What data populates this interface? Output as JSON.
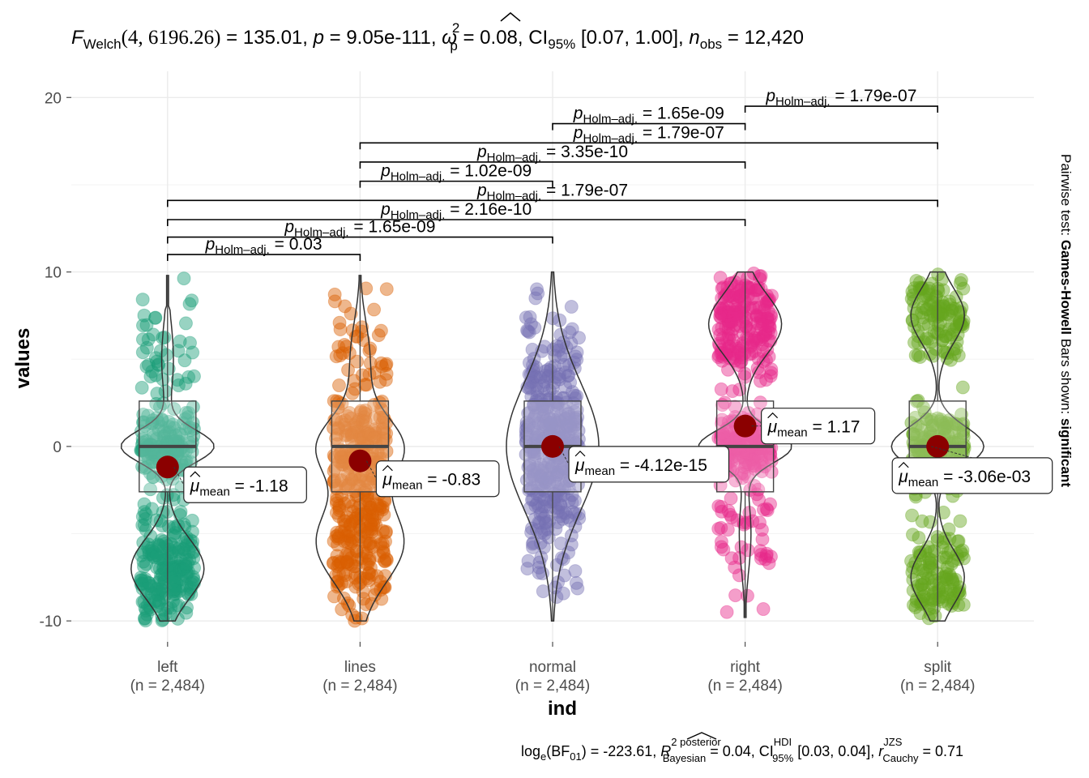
{
  "title": {
    "text": "F Welch(4, 6196.26) = 135.01, p = 9.05e-111, ω̂²p = 0.08, CI95% [0.07, 1.00], n obs = 12,420",
    "F": "F",
    "F_sub": "Welch",
    "df": "(4, 6196.26)",
    "eq1": " = 135.01, ",
    "p": "p",
    "eq2": " = 9.05e-111, ",
    "omega": "ω",
    "omega_sup": "2",
    "omega_sub": "p",
    "eq3": " = 0.08, CI",
    "ci_sub": "95%",
    "eq4": " [0.07, 1.00], ",
    "n": "n",
    "n_sub": "obs",
    "eq5": " = 12,420"
  },
  "caption": {
    "text": "loge(BF01) = -223.61, R̂² posterior Bayesian = 0.04, CI HDI 95% [0.03, 0.04], r JZS Cauchy = 0.71",
    "log": "log",
    "log_sub": "e",
    "bf": "(BF",
    "bf_sub": "01",
    "eq1": ") = -223.61, ",
    "r2": "R",
    "r2_sup": "2 posterior",
    "r2_sub": "Bayesian",
    "eq2": " = 0.04, CI",
    "ci_sup": "HDI",
    "ci_sub": "95%",
    "eq3": " [0.03, 0.04], ",
    "r": "r",
    "r_sup": "JZS",
    "r_sub": "Cauchy",
    "eq4": " = 0.71"
  },
  "side_label": {
    "prefix": "Pairwise test: ",
    "test": "Games-Howell",
    "middle": " Bars shown: ",
    "shown": "significant"
  },
  "chart_data": {
    "type": "violin-box-scatter",
    "xlabel": "ind",
    "ylabel": "values",
    "ylim": [
      -11.2,
      21.5
    ],
    "yticks": [
      -10,
      0,
      10,
      20
    ],
    "ytick_labels": [
      "-10",
      "0",
      "10",
      "20"
    ],
    "grid": true,
    "categories": [
      "left",
      "lines",
      "normal",
      "right",
      "split"
    ],
    "n_labels": [
      "(n = 2,484)",
      "(n = 2,484)",
      "(n = 2,484)",
      "(n = 2,484)",
      "(n = 2,484)"
    ],
    "colors": [
      "#1B9E77",
      "#D95F02",
      "#7570B3",
      "#E7298A",
      "#66A61E"
    ],
    "mean_color": "#8B0000",
    "groups": [
      {
        "name": "left",
        "mean": -1.18,
        "mean_label": "-1.18",
        "q1": -2.6,
        "median": 0,
        "q3": 2.6,
        "min": -10,
        "max": 9.8
      },
      {
        "name": "lines",
        "mean": -0.83,
        "mean_label": "-0.83",
        "q1": -2.6,
        "median": 0,
        "q3": 2.6,
        "min": -10,
        "max": 9.8
      },
      {
        "name": "normal",
        "mean": 0,
        "mean_label": "-4.12e-15",
        "q1": -2.6,
        "median": 0,
        "q3": 2.6,
        "min": -10,
        "max": 10
      },
      {
        "name": "right",
        "mean": 1.17,
        "mean_label": "1.17",
        "q1": -2.6,
        "median": 0,
        "q3": 2.6,
        "min": -9.8,
        "max": 10
      },
      {
        "name": "split",
        "mean": 0,
        "mean_label": "-3.06e-03",
        "q1": -2.6,
        "median": 0,
        "q3": 2.6,
        "min": -10,
        "max": 10
      }
    ],
    "mean_symbol": "μ",
    "mean_sub": "mean",
    "pairwise": [
      {
        "from": "left",
        "to": "lines",
        "y": 11.0,
        "p_label": "0.03"
      },
      {
        "from": "left",
        "to": "normal",
        "y": 12.0,
        "p_label": "1.65e-09"
      },
      {
        "from": "left",
        "to": "right",
        "y": 13.0,
        "p_label": "2.16e-10"
      },
      {
        "from": "left",
        "to": "split",
        "y": 14.1,
        "p_label": "1.79e-07"
      },
      {
        "from": "lines",
        "to": "normal",
        "y": 15.2,
        "p_label": "1.02e-09"
      },
      {
        "from": "lines",
        "to": "right",
        "y": 16.3,
        "p_label": "3.35e-10"
      },
      {
        "from": "lines",
        "to": "split",
        "y": 17.4,
        "p_label": "1.79e-07"
      },
      {
        "from": "normal",
        "to": "right",
        "y": 18.5,
        "p_label": "1.65e-09"
      },
      {
        "from": "right",
        "to": "split",
        "y": 19.5,
        "p_label": "1.79e-07"
      }
    ],
    "p_symbol": "p",
    "p_sub": "Holm–adj."
  }
}
